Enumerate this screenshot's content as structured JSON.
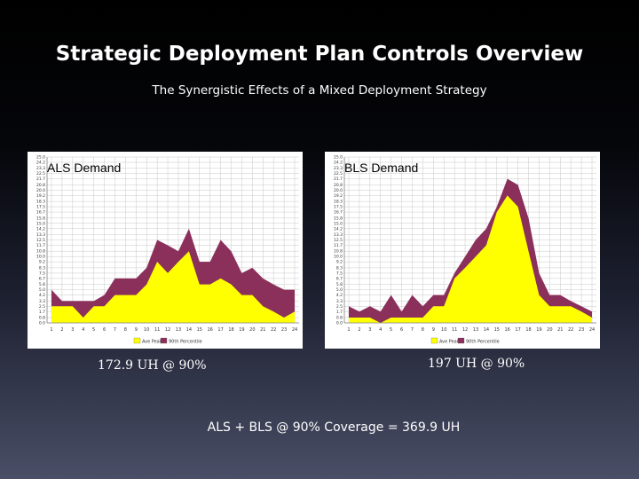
{
  "header": {
    "title": "Strategic Deployment Plan Controls Overview",
    "subtitle": "The Synergistic Effects of a Mixed Deployment Strategy"
  },
  "captions": {
    "als": "172.9 UH @ 90%",
    "bls": "197 UH @ 90%",
    "total": "ALS + BLS @ 90% Coverage = 369.9 UH"
  },
  "colors": {
    "fill_average": "#ffff00",
    "fill_90th": "#8b2f5b"
  },
  "chart_data": [
    {
      "type": "area",
      "title": "ALS Demand",
      "x": [
        1,
        2,
        3,
        4,
        5,
        6,
        7,
        8,
        9,
        10,
        11,
        12,
        13,
        14,
        15,
        16,
        17,
        18,
        19,
        20,
        21,
        22,
        23,
        24
      ],
      "ylim": [
        0,
        25
      ],
      "y_ticks": [
        0.0,
        0.8,
        1.7,
        2.5,
        3.3,
        4.2,
        5.0,
        5.8,
        6.7,
        7.5,
        8.3,
        9.2,
        10.0,
        10.8,
        11.7,
        12.5,
        13.3,
        14.2,
        15.0,
        15.8,
        16.7,
        17.5,
        18.3,
        19.2,
        20.0,
        20.8,
        21.7,
        22.5,
        23.3,
        24.2,
        25.0
      ],
      "grid": true,
      "legend": "bottom",
      "legend_entries": [
        "Ave Peak",
        "90th Percentile"
      ],
      "series": [
        {
          "name": "Ave Peak",
          "values": [
            2.5,
            2.5,
            2.5,
            0.8,
            2.5,
            2.5,
            4.2,
            4.2,
            4.2,
            5.8,
            9.2,
            7.5,
            9.2,
            10.8,
            5.8,
            5.8,
            6.7,
            5.8,
            4.2,
            4.2,
            2.5,
            1.7,
            0.8,
            1.7
          ]
        },
        {
          "name": "90th Percentile",
          "values": [
            5.0,
            3.3,
            3.3,
            3.3,
            3.3,
            4.2,
            6.7,
            6.7,
            6.7,
            8.3,
            12.5,
            11.7,
            10.8,
            14.2,
            9.2,
            9.2,
            12.5,
            10.8,
            7.5,
            8.3,
            6.7,
            5.8,
            5.0,
            5.0
          ]
        }
      ]
    },
    {
      "type": "area",
      "title": "BLS Demand",
      "x": [
        1,
        2,
        3,
        4,
        5,
        6,
        7,
        8,
        9,
        10,
        11,
        12,
        13,
        14,
        15,
        16,
        17,
        18,
        19,
        20,
        21,
        22,
        23,
        24
      ],
      "ylim": [
        0,
        25
      ],
      "y_ticks": [
        0.0,
        0.8,
        1.7,
        2.5,
        3.3,
        4.2,
        5.0,
        5.8,
        6.7,
        7.5,
        8.3,
        9.2,
        10.0,
        10.8,
        11.7,
        12.5,
        13.3,
        14.2,
        15.0,
        15.8,
        16.7,
        17.5,
        18.3,
        19.2,
        20.0,
        20.8,
        21.7,
        22.5,
        23.3,
        24.2,
        25.0
      ],
      "grid": true,
      "legend": "bottom",
      "legend_entries": [
        "Ave Peak",
        "90th Percentile"
      ],
      "series": [
        {
          "name": "Ave Peak",
          "values": [
            0.8,
            0.8,
            0.8,
            0.0,
            0.8,
            0.8,
            0.8,
            0.8,
            2.5,
            2.5,
            6.7,
            8.3,
            10.0,
            11.7,
            16.7,
            19.2,
            17.5,
            10.8,
            4.2,
            2.5,
            2.5,
            2.5,
            1.7,
            0.8
          ]
        },
        {
          "name": "90th Percentile",
          "values": [
            2.5,
            1.7,
            2.5,
            1.7,
            4.2,
            1.7,
            4.2,
            2.5,
            4.2,
            4.2,
            7.5,
            10.0,
            12.5,
            14.2,
            17.5,
            21.7,
            20.8,
            15.8,
            7.5,
            4.2,
            4.2,
            3.3,
            2.5,
            1.7
          ]
        }
      ]
    }
  ]
}
